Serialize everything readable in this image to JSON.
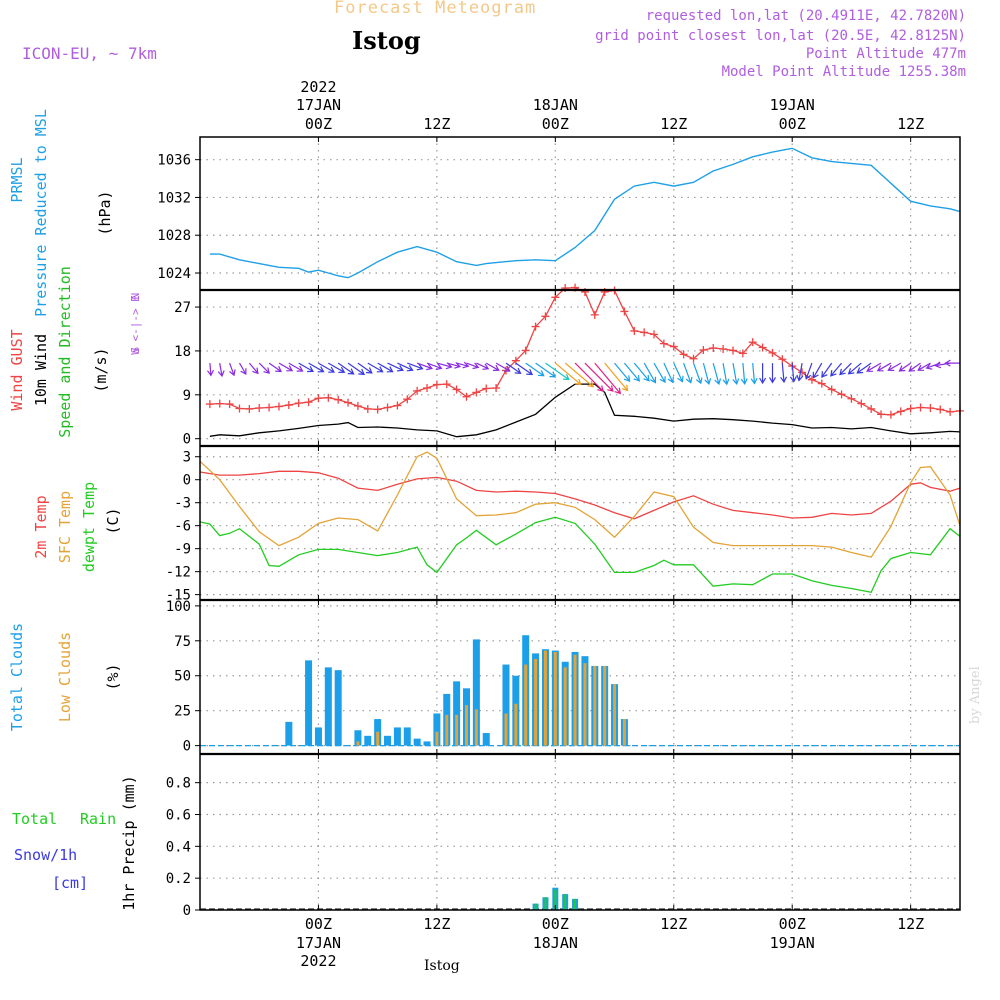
{
  "header": {
    "super_title": "Forecast Meteogram",
    "station": "Istog",
    "model": "ICON-EU, ~ 7km",
    "requested": "requested lon,lat (20.4911E, 42.7820N)",
    "grid": "grid point closest lon,lat (20.5E, 42.8125N)",
    "point_alt": "Point Altitude 477m",
    "model_alt": "Model Point Altitude 1255.38m",
    "watermark": "by Angel",
    "bottom_label": "Istog"
  },
  "colors": {
    "pressure": "#1fa0e6",
    "gust": "#ee4444",
    "wind": "#000000",
    "direction_label": "#22bb22",
    "temp2m": "#ee4444",
    "sfc": "#e3a336",
    "dewpt": "#22cc22",
    "total_clouds": "#1a9fe8",
    "low_clouds": "#e3a336",
    "header_purple": "#b05ee0",
    "title_orange": "#f3c98a",
    "rain": "#22cc22",
    "snow": "#3a3ae0"
  },
  "time_axis": {
    "top_year": "2022",
    "ticks": [
      {
        "h": 0,
        "top": "00Z",
        "date": "17JAN",
        "year": "2022"
      },
      {
        "h": 12,
        "top": "12Z",
        "date": "",
        "year": ""
      },
      {
        "h": 24,
        "top": "00Z",
        "date": "18JAN",
        "year": ""
      },
      {
        "h": 36,
        "top": "12Z",
        "date": "",
        "year": ""
      },
      {
        "h": 48,
        "top": "00Z",
        "date": "19JAN",
        "year": ""
      },
      {
        "h": 60,
        "top": "12Z",
        "date": "",
        "year": ""
      }
    ],
    "range": [
      -12,
      65
    ]
  },
  "panels": {
    "pressure": {
      "labels": [
        "PRMSL",
        "Pressure Reduced to MSL",
        "(hPa)"
      ],
      "ticks": [
        "1024",
        "1028",
        "1032",
        "1036"
      ]
    },
    "wind": {
      "labels": [
        "Wind GUST",
        "10m Wind",
        "Speed and Direction",
        "(m/s)"
      ],
      "ticks": [
        "0",
        "9",
        "18",
        "27"
      ],
      "compass": [
        "N",
        "W <-|-> E",
        "S"
      ]
    },
    "temp": {
      "labels": [
        "2m Temp",
        "SFC Temp",
        "dewpt Temp",
        "(C)"
      ],
      "ticks": [
        "3",
        "0",
        "-3",
        "-6",
        "-9",
        "-12",
        "-15"
      ]
    },
    "clouds": {
      "labels": [
        "Total Clouds",
        "Low Clouds",
        "(%)"
      ],
      "ticks": [
        "0",
        "25",
        "50",
        "75",
        "100"
      ]
    },
    "precip": {
      "labels": [
        "Total",
        "Rain",
        "Snow/1h",
        "[cm]",
        "1hr Precip (mm)"
      ],
      "ticks": [
        "0",
        "0.2",
        "0.4",
        "0.6",
        "0.8"
      ]
    }
  },
  "chart_data": [
    {
      "type": "line",
      "title": "PRMSL Pressure Reduced to MSL",
      "ylabel": "(hPa)",
      "ylim": [
        1022.2,
        1038.4
      ],
      "grid": true,
      "series": [
        {
          "name": "PRMSL",
          "x": [
            -11,
            -10,
            -8,
            -6,
            -4,
            -2,
            -1,
            0,
            1,
            2,
            3,
            4,
            6,
            8,
            10,
            12,
            14,
            16,
            17,
            18,
            20,
            22,
            24,
            26,
            28,
            30,
            32,
            34,
            36,
            38,
            40,
            42,
            44,
            46,
            48,
            50,
            52,
            54,
            56,
            58,
            60,
            62,
            64,
            65
          ],
          "y": [
            1026,
            1026,
            1025.4,
            1025,
            1024.6,
            1024.5,
            1024.1,
            1024.3,
            1024,
            1023.7,
            1023.5,
            1024,
            1025.2,
            1026.2,
            1026.8,
            1026.2,
            1025.2,
            1024.8,
            1025,
            1025.1,
            1025.3,
            1025.4,
            1025.3,
            1026.7,
            1028.5,
            1031.8,
            1033.2,
            1033.6,
            1033.2,
            1033.6,
            1034.8,
            1035.5,
            1036.3,
            1036.8,
            1037.2,
            1036.2,
            1035.8,
            1035.6,
            1035.4,
            1033.5,
            1031.6,
            1031.1,
            1030.8,
            1030.5
          ]
        }
      ]
    },
    {
      "type": "line",
      "title": "Wind GUST / 10m Wind Speed and Direction",
      "ylabel": "(m/s)",
      "ylim": [
        -1.5,
        30.5
      ],
      "grid": true,
      "series": [
        {
          "name": "Wind GUST",
          "x": [
            -11,
            -10,
            -9,
            -8,
            -7,
            -6,
            -5,
            -4,
            -3,
            -2,
            -1,
            0,
            1,
            2,
            3,
            4,
            5,
            6,
            7,
            8,
            9,
            10,
            11,
            12,
            13,
            14,
            15,
            16,
            17,
            18,
            19,
            20,
            21,
            22,
            23,
            24,
            25,
            26,
            27,
            28,
            29,
            30,
            31,
            32,
            33,
            34,
            35,
            36,
            37,
            38,
            39,
            40,
            41,
            42,
            43,
            44,
            45,
            46,
            47,
            48,
            49,
            50,
            51,
            52,
            53,
            54,
            55,
            56,
            57,
            58,
            59,
            60,
            61,
            62,
            63,
            64,
            65
          ],
          "y": [
            7.1,
            7.2,
            7.1,
            6.2,
            6.1,
            6.3,
            6.4,
            6.6,
            6.9,
            7.3,
            7.5,
            8.3,
            8.4,
            8.0,
            7.4,
            6.7,
            6.1,
            6.0,
            6.4,
            6.8,
            8.1,
            9.8,
            10.4,
            11.1,
            11.2,
            10.1,
            8.6,
            9.5,
            10.3,
            10.4,
            14.0,
            16.0,
            18.1,
            23.0,
            25.1,
            29.0,
            30.9,
            31.0,
            30.1,
            25.4,
            30.1,
            30.4,
            26.1,
            22.1,
            21.8,
            21.4,
            19.5,
            18.9,
            17.3,
            16.4,
            18.2,
            18.6,
            18.4,
            18.1,
            17.5,
            19.8,
            18.7,
            17.6,
            16.3,
            14.9,
            13.6,
            12.1,
            11.3,
            10.1,
            9.1,
            8.2,
            7.2,
            6.1,
            5.0,
            4.9,
            5.6,
            6.2,
            6.4,
            6.3,
            6.0,
            5.5,
            5.7
          ]
        },
        {
          "name": "10m Wind",
          "x": [
            -11,
            -10,
            -8,
            -6,
            -4,
            -2,
            0,
            2,
            3,
            4,
            6,
            8,
            10,
            12,
            14,
            16,
            18,
            20,
            22,
            24,
            26,
            28,
            29,
            30,
            32,
            34,
            36,
            38,
            40,
            42,
            44,
            46,
            48,
            50,
            52,
            54,
            56,
            58,
            60,
            62,
            64,
            65
          ],
          "y": [
            0.5,
            0.8,
            0.6,
            1.2,
            1.6,
            2.1,
            2.7,
            3.0,
            3.3,
            2.3,
            2.4,
            2.2,
            1.8,
            1.6,
            0.4,
            0.8,
            1.8,
            3.4,
            5.0,
            8.5,
            11.2,
            11.2,
            9.5,
            4.8,
            4.6,
            4.2,
            3.6,
            4.0,
            4.1,
            3.9,
            3.6,
            3.2,
            2.9,
            2.2,
            2.3,
            2.0,
            2.3,
            1.6,
            1.0,
            1.2,
            1.5,
            1.4
          ]
        },
        {
          "name": "Direction",
          "values": [
            355,
            350,
            340,
            330,
            320,
            315,
            305,
            300,
            300,
            300,
            300,
            300,
            300,
            305,
            305,
            305,
            300,
            300,
            295,
            295,
            290,
            290,
            290,
            285,
            285,
            285,
            290,
            295,
            300,
            300,
            305,
            305,
            305,
            305,
            305,
            310,
            310,
            315,
            315,
            320,
            320,
            320,
            320,
            320,
            330,
            330,
            335,
            335,
            340,
            340,
            345,
            345,
            350,
            350,
            355,
            355,
            360,
            360,
            355,
            355,
            10,
            20,
            30,
            35,
            40,
            45,
            50,
            55,
            60,
            60,
            60,
            55,
            55,
            60,
            70,
            80,
            90
          ]
        }
      ]
    },
    {
      "type": "line",
      "title": "2m Temp / SFC Temp / dewpt Temp",
      "ylabel": "(C)",
      "ylim": [
        -15.7,
        4.4
      ],
      "grid": true,
      "series": [
        {
          "name": "2m Temp",
          "x": [
            -12,
            -10,
            -8,
            -6,
            -4,
            -2,
            0,
            2,
            4,
            6,
            8,
            10,
            12,
            14,
            16,
            18,
            20,
            22,
            24,
            26,
            28,
            30,
            32,
            34,
            36,
            38,
            40,
            42,
            44,
            46,
            48,
            50,
            52,
            54,
            56,
            58,
            60,
            61,
            62,
            64,
            65
          ],
          "y": [
            1,
            0.6,
            0.6,
            0.8,
            1.1,
            1.1,
            0.9,
            0.2,
            -1.1,
            -1.4,
            -0.6,
            0.1,
            0.3,
            -0.2,
            -1.4,
            -1.6,
            -1.5,
            -1.6,
            -1.8,
            -2.5,
            -3.3,
            -4.3,
            -5.1,
            -4,
            -2.9,
            -2.1,
            -3.2,
            -4,
            -4.3,
            -4.6,
            -5,
            -4.9,
            -4.4,
            -4.6,
            -4.4,
            -2.8,
            -0.6,
            -0.4,
            -1,
            -1.5,
            -1.1
          ]
        },
        {
          "name": "SFC Temp",
          "x": [
            -12,
            -10,
            -8,
            -6,
            -4,
            -2,
            0,
            2,
            4,
            6,
            8,
            10,
            11,
            12,
            14,
            16,
            18,
            20,
            22,
            24,
            26,
            28,
            30,
            32,
            34,
            36,
            38,
            40,
            42,
            44,
            46,
            48,
            50,
            52,
            54,
            56,
            58,
            60,
            61,
            62,
            64,
            65
          ],
          "y": [
            2.4,
            0,
            -3.5,
            -6.8,
            -8.6,
            -7.5,
            -5.7,
            -5,
            -5.2,
            -6.7,
            -2,
            3,
            3.6,
            2.8,
            -2.5,
            -4.7,
            -4.6,
            -4.3,
            -3.2,
            -3,
            -3.6,
            -5.2,
            -7.5,
            -4.8,
            -1.6,
            -2.2,
            -6.2,
            -8.2,
            -8.6,
            -8.6,
            -8.6,
            -8.6,
            -8.6,
            -8.8,
            -9.5,
            -10.1,
            -6.1,
            -0.4,
            1.6,
            1.7,
            -2,
            -6
          ]
        },
        {
          "name": "dewpt Temp",
          "x": [
            -12,
            -11,
            -10,
            -9,
            -8,
            -6,
            -5,
            -4,
            -2,
            0,
            2,
            4,
            6,
            8,
            10,
            11,
            12,
            14,
            15,
            16,
            18,
            20,
            22,
            24,
            26,
            28,
            30,
            32,
            34,
            35,
            36,
            38,
            40,
            42,
            44,
            46,
            48,
            50,
            52,
            54,
            56,
            57,
            58,
            60,
            62,
            64,
            65
          ],
          "y": [
            -5.5,
            -5.8,
            -7.3,
            -7.0,
            -6.4,
            -8.4,
            -11.2,
            -11.3,
            -9.8,
            -9.1,
            -9.1,
            -9.5,
            -9.9,
            -9.5,
            -8.8,
            -11.1,
            -12.1,
            -8.5,
            -7.6,
            -6.6,
            -8.5,
            -7.1,
            -5.6,
            -4.9,
            -5.7,
            -8.4,
            -12.1,
            -12.1,
            -11.2,
            -10.5,
            -11.1,
            -11.1,
            -13.9,
            -13.6,
            -13.7,
            -12.3,
            -12.3,
            -13.2,
            -13.8,
            -14.2,
            -14.7,
            -11.9,
            -10.3,
            -9.5,
            -9.8,
            -6.4,
            -7.4
          ]
        }
      ]
    },
    {
      "type": "bar",
      "title": "Total Clouds / Low Clouds",
      "ylabel": "(%)",
      "ylim": [
        -6,
        104.2
      ],
      "grid": true,
      "series": [
        {
          "name": "Total Clouds",
          "x": [
            -3,
            -1,
            0,
            1,
            2,
            4,
            5,
            6,
            7,
            8,
            9,
            10,
            11,
            12,
            13,
            14,
            15,
            16,
            17,
            19,
            20,
            21,
            22,
            23,
            24,
            25,
            26,
            27,
            28,
            29,
            30,
            31
          ],
          "values": [
            17,
            61,
            13,
            56,
            54,
            11,
            7,
            19,
            7,
            13,
            13,
            5,
            3,
            23,
            37,
            46,
            41,
            76,
            9,
            58,
            50,
            79,
            66,
            69,
            68,
            60,
            67,
            64,
            57,
            57,
            44,
            19
          ]
        },
        {
          "name": "Low Clouds",
          "x": [
            -3,
            -1,
            0,
            1,
            2,
            4,
            5,
            6,
            7,
            8,
            9,
            10,
            11,
            12,
            13,
            14,
            15,
            16,
            17,
            19,
            20,
            21,
            22,
            23,
            24,
            25,
            26,
            27,
            28,
            29,
            30,
            31
          ],
          "values": [
            0,
            0,
            0,
            0,
            0,
            3,
            0,
            10,
            0,
            0,
            0,
            0,
            0,
            10,
            22,
            22,
            29,
            26,
            0,
            23,
            30,
            58,
            62,
            68,
            67,
            56,
            65,
            59,
            57,
            57,
            44,
            19
          ]
        }
      ]
    },
    {
      "type": "bar",
      "title": "1hr Precip",
      "ylabel": "1hr Precip (mm)",
      "ylim": [
        0,
        0.98
      ],
      "grid": true,
      "series": [
        {
          "name": "Total Rain",
          "x": [
            22,
            23,
            24,
            25,
            26
          ],
          "values": [
            0.04,
            0.08,
            0.13,
            0.1,
            0.07
          ]
        },
        {
          "name": "Snow/1h",
          "x": [
            22,
            23,
            24,
            25,
            26
          ],
          "values": [
            0.04,
            0.08,
            0.14,
            0.1,
            0.07
          ]
        }
      ]
    }
  ]
}
